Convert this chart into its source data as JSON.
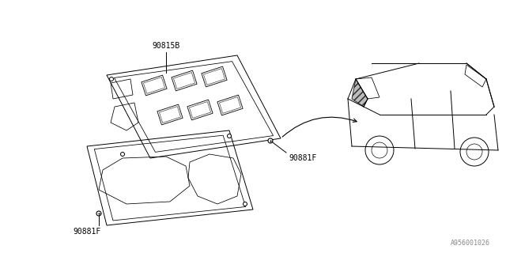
{
  "bg_color": "#ffffff",
  "line_color": "#000000",
  "part_line_color": "#555555",
  "label_90815B": "90815B",
  "label_90881F_top": "90881F",
  "label_90881F_bot": "90881F",
  "diagram_id": "A956001026",
  "title": "",
  "fig_width": 6.4,
  "fig_height": 3.2,
  "dpi": 100
}
